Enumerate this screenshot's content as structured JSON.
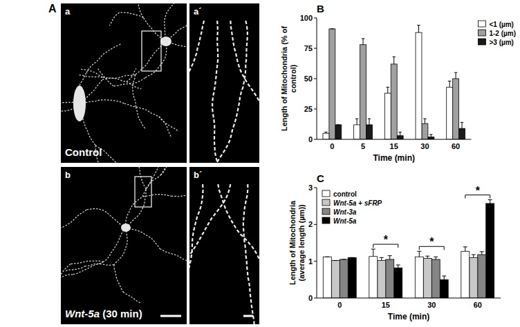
{
  "image_panel": {
    "panel_label": "A",
    "images": [
      {
        "label": "a",
        "caption": "Control"
      },
      {
        "label": "a´"
      },
      {
        "label": "b",
        "caption": "Wnt-5a (30 min)"
      },
      {
        "label": "b´"
      }
    ]
  },
  "chart_data": [
    {
      "type": "bar",
      "panel_label": "B",
      "x_label": "Time (min)",
      "y_label": "Length of Mitochondria (% of control)",
      "categories": [
        "0",
        "5",
        "15",
        "30",
        "60"
      ],
      "series": [
        {
          "name": "<1 (µm)",
          "color": "#ffffff",
          "values": [
            5,
            12,
            38,
            88,
            43
          ],
          "errors": [
            1,
            5,
            5,
            6,
            5
          ]
        },
        {
          "name": "1-2 (µm)",
          "color": "#a0a0a0",
          "values": [
            91,
            78,
            62,
            13,
            50
          ],
          "errors": [
            0,
            5,
            6,
            4,
            5
          ]
        },
        {
          "name": ">3 (µm)",
          "color": "#1a1a1a",
          "values": [
            12,
            12,
            3,
            2,
            9
          ],
          "errors": [
            0,
            5,
            3,
            2,
            5
          ]
        }
      ],
      "ylim": [
        0,
        100
      ],
      "yticks": [
        0,
        25,
        50,
        75,
        100
      ],
      "grid": false,
      "legend": "right"
    },
    {
      "type": "bar",
      "panel_label": "C",
      "x_label": "Time (min)",
      "y_label": "Length of Mitochondria (average length (µm))",
      "categories": [
        "0",
        "15",
        "30",
        "60"
      ],
      "series": [
        {
          "name": "control",
          "color": "#ffffff",
          "values": [
            1.12,
            1.13,
            1.12,
            1.27
          ],
          "errors": [
            0,
            0.2,
            0.15,
            0.12
          ]
        },
        {
          "name": "Wnt-5a + sFRP",
          "color": "#c8c8c8",
          "values": [
            1.02,
            1.02,
            1.08,
            1.1
          ],
          "errors": [
            0,
            0.08,
            0.06,
            0.08
          ]
        },
        {
          "name": "Wnt-3a",
          "color": "#858585",
          "values": [
            1.05,
            1.05,
            1.05,
            1.18
          ],
          "errors": [
            0,
            0.1,
            0.07,
            0.08
          ]
        },
        {
          "name": "Wnt-5a",
          "color": "#000000",
          "values": [
            1.1,
            0.82,
            0.5,
            2.57
          ],
          "errors": [
            0,
            0.08,
            0.1,
            0.1
          ]
        }
      ],
      "annotations": [
        {
          "text": "*",
          "category": "15",
          "between": [
            "control",
            "Wnt-5a"
          ]
        },
        {
          "text": "*",
          "category": "30",
          "between": [
            "control",
            "Wnt-5a"
          ]
        },
        {
          "text": "*",
          "category": "60",
          "between": [
            "control",
            "Wnt-5a"
          ]
        }
      ],
      "ylim": [
        0,
        3
      ],
      "yticks": [
        0,
        1,
        2,
        3
      ],
      "grid": false,
      "legend": "top-left"
    }
  ]
}
